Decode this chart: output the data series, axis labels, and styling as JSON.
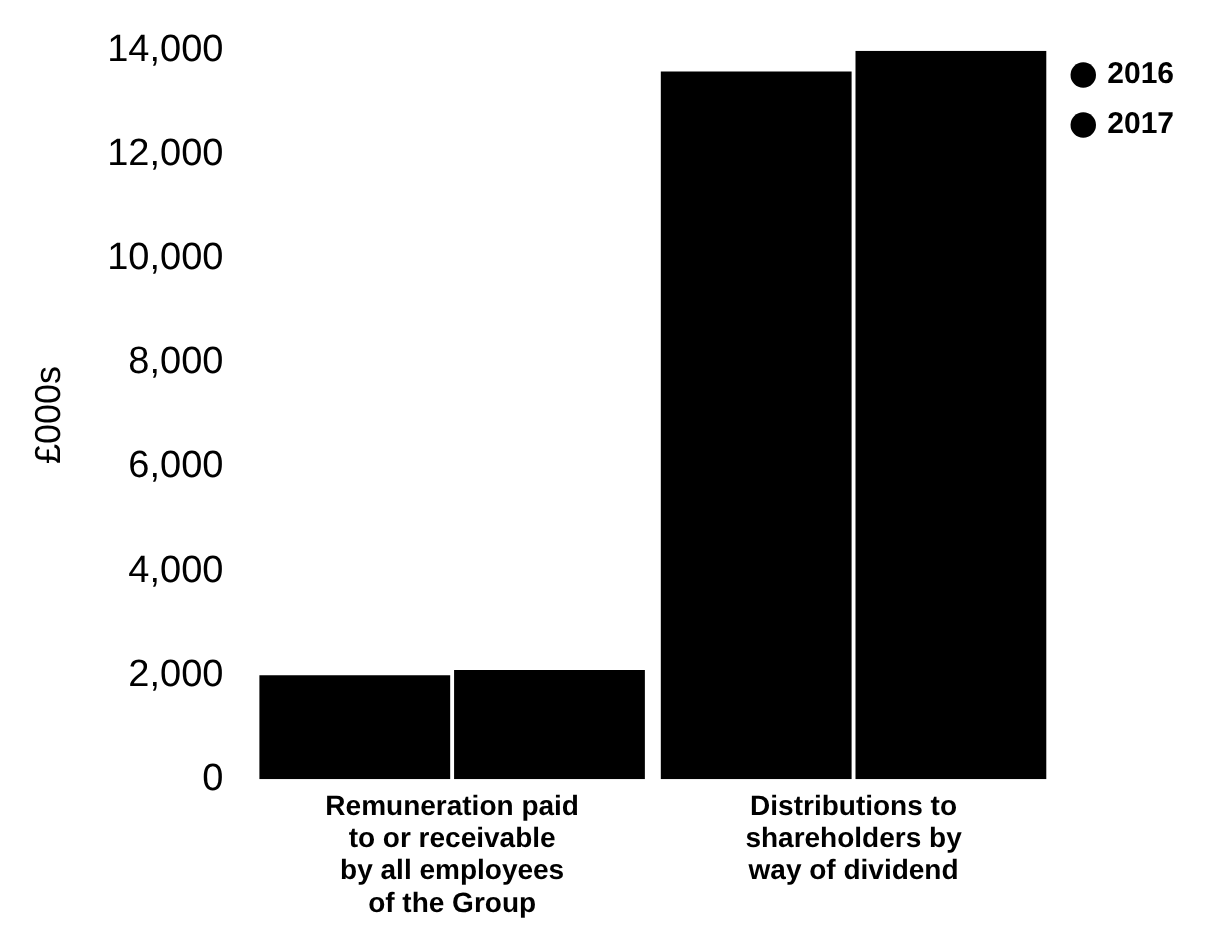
{
  "chart_data": {
    "type": "bar",
    "ylabel": "£000s",
    "categories": [
      "Remuneration paid to or receivable by all employees of the Group",
      "Distributions to shareholders by way of dividend"
    ],
    "series": [
      {
        "name": "2016",
        "color": "#000000",
        "values": [
          2000,
          13600
        ]
      },
      {
        "name": "2017",
        "color": "#000000",
        "values": [
          2100,
          14000
        ]
      }
    ],
    "ylim": [
      0,
      14000
    ],
    "yticks": [
      0,
      {
        "value": 2000,
        "label": "2,000"
      },
      {
        "value": 4000,
        "label": "4,000"
      },
      {
        "value": 6000,
        "label": "6,000"
      },
      {
        "value": 8000,
        "label": "8,000"
      },
      {
        "value": 10000,
        "label": "10,000"
      },
      {
        "value": 12000,
        "label": "12,000"
      },
      {
        "value": 14000,
        "label": "14,000"
      }
    ],
    "grid": false,
    "legend": "top right"
  }
}
